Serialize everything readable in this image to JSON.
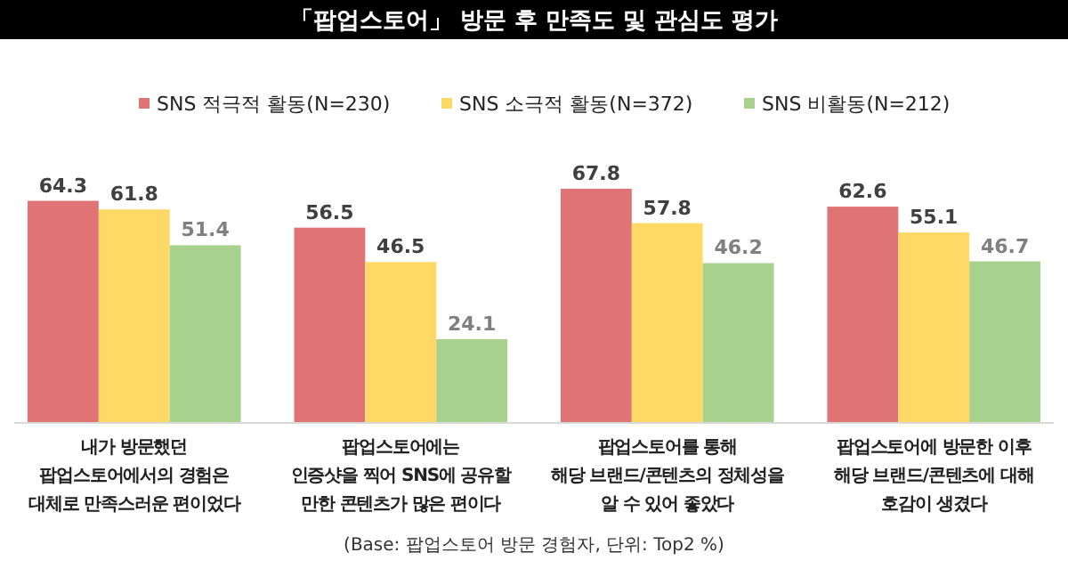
{
  "chart_data": {
    "type": "bar",
    "title": "「팝업스토어」 방문 후 만족도 및 관심도 평가",
    "categories": [
      "내가 방문했던\n팝업스토어에서의 경험은\n대체로 만족스러운 편이었다",
      "팝업스토어에는\n인증샷을 찍어 SNS에 공유할\n만한 콘텐츠가 많은 편이다",
      "팝업스토어를 통해\n해당 브랜드/콘텐츠의 정체성을\n알 수 있어 좋았다",
      "팝업스토어에 방문한 이후\n해당 브랜드/콘텐츠에 대해\n호감이 생겼다"
    ],
    "series": [
      {
        "name": "SNS 적극적 활동(N=230)",
        "color": "#e07474",
        "values": [
          64.3,
          56.5,
          67.8,
          62.6
        ]
      },
      {
        "name": "SNS 소극적 활동(N=372)",
        "color": "#ffd966",
        "values": [
          61.8,
          46.5,
          57.8,
          55.1
        ]
      },
      {
        "name": "SNS 비활동(N=212)",
        "color": "#a9d18e",
        "values": [
          51.4,
          24.1,
          46.2,
          46.7
        ]
      }
    ],
    "data_labels": true,
    "legend": "top",
    "annotations": [
      "(Base: 팝업스토어 방문 경험자, 단위: Top2 %)"
    ]
  }
}
